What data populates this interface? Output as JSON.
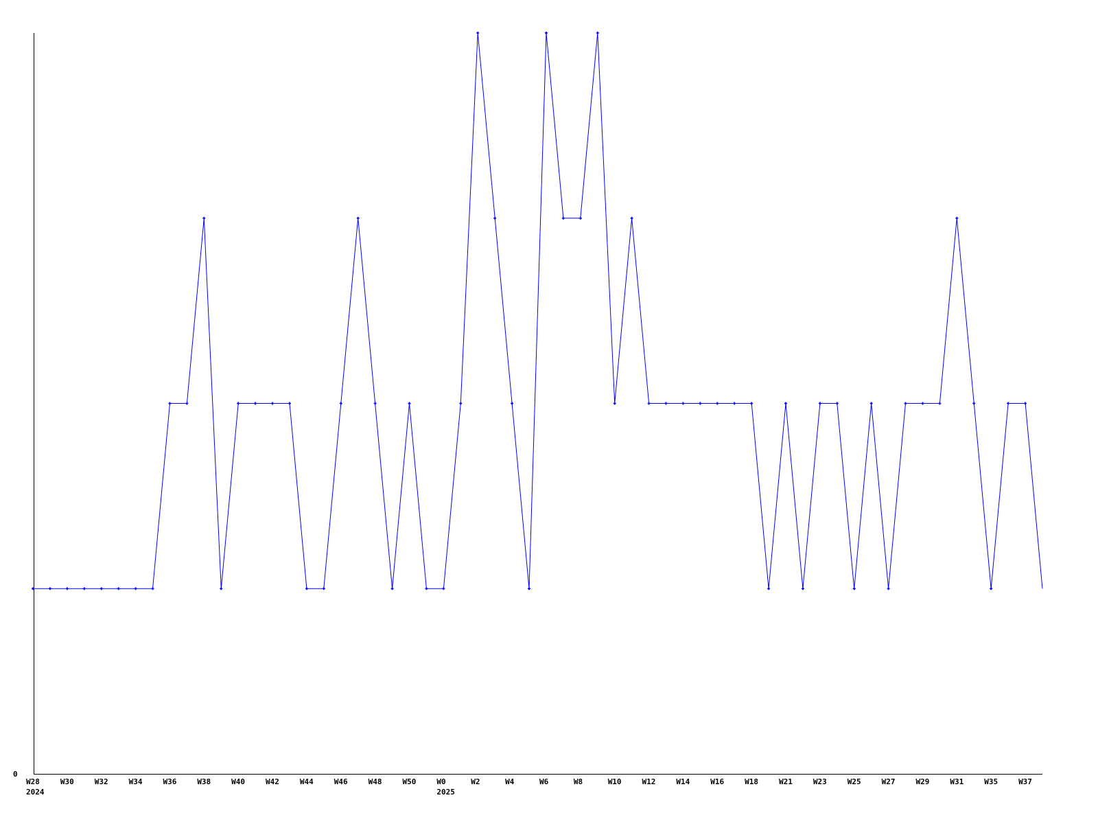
{
  "chart_data": {
    "type": "line",
    "title": "",
    "xlabel": "",
    "ylabel": "",
    "ylim": [
      0,
      4
    ],
    "y_tick_labels": [
      "0"
    ],
    "grid": false,
    "color": "#0000ff",
    "values": [
      1,
      1,
      1,
      1,
      1,
      1,
      1,
      1,
      2,
      2,
      3,
      1,
      2,
      2,
      2,
      2,
      1,
      1,
      2,
      3,
      2,
      1,
      2,
      1,
      1,
      2,
      4,
      3,
      2,
      1,
      4,
      3,
      3,
      4,
      2,
      3,
      2,
      2,
      2,
      2,
      2,
      2,
      2,
      1,
      2,
      1,
      2,
      2,
      1,
      2,
      1,
      2,
      2,
      2,
      3,
      2,
      1,
      2,
      2,
      1
    ],
    "x_ticks": [
      {
        "index": 0,
        "label": "W28",
        "year": "2024"
      },
      {
        "index": 2,
        "label": "W30"
      },
      {
        "index": 4,
        "label": "W32"
      },
      {
        "index": 6,
        "label": "W34"
      },
      {
        "index": 8,
        "label": "W36"
      },
      {
        "index": 10,
        "label": "W38"
      },
      {
        "index": 12,
        "label": "W40"
      },
      {
        "index": 14,
        "label": "W42"
      },
      {
        "index": 16,
        "label": "W44"
      },
      {
        "index": 18,
        "label": "W46"
      },
      {
        "index": 20,
        "label": "W48"
      },
      {
        "index": 22,
        "label": "W50"
      },
      {
        "index": 24,
        "label": "W0",
        "year": "2025"
      },
      {
        "index": 26,
        "label": "W2"
      },
      {
        "index": 28,
        "label": "W4"
      },
      {
        "index": 30,
        "label": "W6"
      },
      {
        "index": 32,
        "label": "W8"
      },
      {
        "index": 34,
        "label": "W10"
      },
      {
        "index": 36,
        "label": "W12"
      },
      {
        "index": 38,
        "label": "W14"
      },
      {
        "index": 40,
        "label": "W16"
      },
      {
        "index": 42,
        "label": "W18"
      },
      {
        "index": 44,
        "label": "W21"
      },
      {
        "index": 46,
        "label": "W23"
      },
      {
        "index": 48,
        "label": "W25"
      },
      {
        "index": 50,
        "label": "W27"
      },
      {
        "index": 52,
        "label": "W29"
      },
      {
        "index": 54,
        "label": "W31"
      },
      {
        "index": 56,
        "label": "W35"
      },
      {
        "index": 58,
        "label": "W37"
      }
    ]
  }
}
